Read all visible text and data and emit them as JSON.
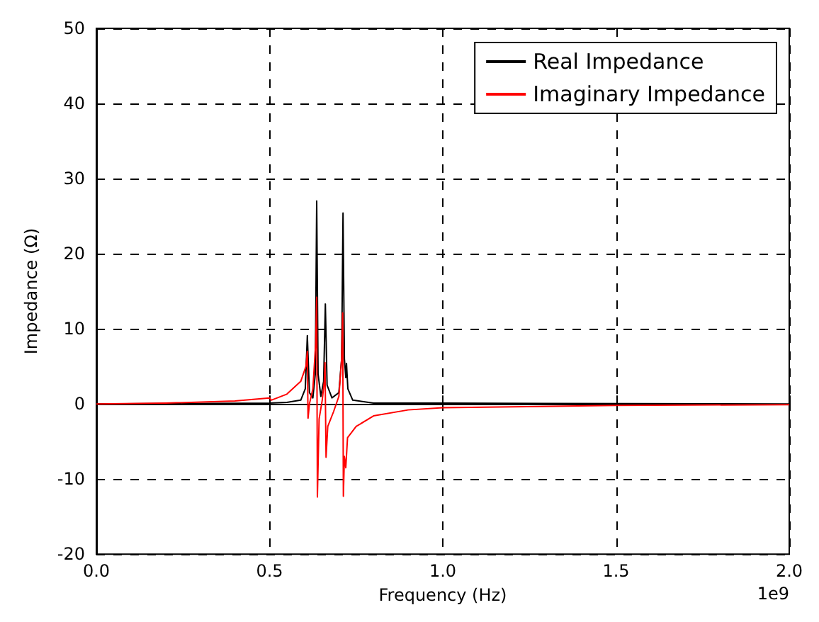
{
  "chart_data": {
    "type": "line",
    "xlabel": "Frequency (Hz)",
    "ylabel": "Impedance (Ω)",
    "annotations": [
      "1e9"
    ],
    "xlim": [
      0,
      2
    ],
    "xticks": [
      {
        "value": 0,
        "label": "0.0"
      },
      {
        "value": 0.5,
        "label": "0.5"
      },
      {
        "value": 1,
        "label": "1.0"
      },
      {
        "value": 1.5,
        "label": "1.5"
      },
      {
        "value": 2,
        "label": "2.0"
      }
    ],
    "ylim": [
      -20,
      50
    ],
    "yticks": [
      -20,
      -10,
      0,
      10,
      20,
      30,
      40,
      50
    ],
    "grid": true,
    "legend": "top right",
    "marker": "none",
    "line_style": "solid",
    "series": [
      {
        "name": "Real Impedance",
        "color": "#000000",
        "x": [
          0,
          0.5,
          0.55,
          0.59,
          0.603,
          0.609,
          0.615,
          0.625,
          0.632,
          0.636,
          0.64,
          0.648,
          0.656,
          0.661,
          0.666,
          0.68,
          0.7,
          0.708,
          0.712,
          0.716,
          0.72,
          0.722,
          0.726,
          0.74,
          0.8,
          1,
          2
        ],
        "values": [
          0,
          0.1,
          0.2,
          0.5,
          2,
          9.1,
          1.5,
          0.8,
          4,
          27,
          4,
          1,
          3,
          13.3,
          2.5,
          0.8,
          1.5,
          6,
          25.4,
          6,
          3.5,
          5.4,
          2,
          0.5,
          0.1,
          0.1,
          0
        ]
      },
      {
        "name": "Imaginary Impedance",
        "color": "#ff0000",
        "x": [
          0,
          0.2,
          0.4,
          0.5,
          0.505,
          0.55,
          0.59,
          0.605,
          0.609,
          0.611,
          0.615,
          0.625,
          0.633,
          0.636,
          0.638,
          0.643,
          0.652,
          0.658,
          0.66,
          0.663,
          0.668,
          0.685,
          0.7,
          0.708,
          0.711,
          0.713,
          0.716,
          0.72,
          0.725,
          0.75,
          0.8,
          0.9,
          1,
          1.5,
          2
        ],
        "values": [
          0,
          0.1,
          0.4,
          0.8,
          0.5,
          1.3,
          3,
          5,
          7,
          -1.9,
          0,
          2,
          8,
          14.2,
          -12.4,
          -2,
          0.5,
          3,
          5.5,
          -7.1,
          -3,
          -1,
          1,
          6,
          12.1,
          -12.3,
          -7,
          -8.5,
          -4.5,
          -3,
          -1.6,
          -0.8,
          -0.5,
          -0.2,
          -0.1
        ]
      }
    ]
  }
}
